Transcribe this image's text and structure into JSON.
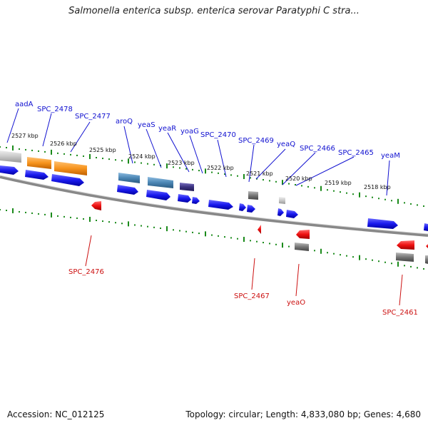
{
  "title": "Salmonella enterica subsp. enterica serovar Paratyphi C stra...",
  "footer": {
    "accession": "Accession: NC_012125",
    "summary": "Topology: circular; Length: 4,833,080 bp; Genes: 4,680"
  },
  "colors": {
    "forward_gene": "#1a1aee",
    "reverse_gene": "#ee1111",
    "label_top": "#1010d0",
    "label_bottom": "#cc1010",
    "tick": "#1a8a1a",
    "backbone": "#888888",
    "feature_orange": "#f7941d",
    "feature_steel": "#4b86b4",
    "feature_purple": "#3b3280",
    "feature_gray": "#777777",
    "feature_lightgray": "#c8c8c8"
  },
  "kbp_labels": [
    "2527 kbp",
    "2526 kbp",
    "2525 kbp",
    "2524 kbp",
    "2523 kbp",
    "2522 kbp",
    "2521 kbp",
    "2520 kbp",
    "2519 kbp",
    "2518 kbp"
  ],
  "top_labels": [
    "aadA",
    "SPC_2478",
    "SPC_2477",
    "aroQ",
    "yeaS",
    "yeaR",
    "yoaG",
    "SPC_2470",
    "SPC_2469",
    "yeaQ",
    "SPC_2466",
    "SPC_2465",
    "yeaM"
  ],
  "bottom_labels": [
    "SPC_2476",
    "SPC_2467",
    "yeaO",
    "SPC_2461"
  ]
}
